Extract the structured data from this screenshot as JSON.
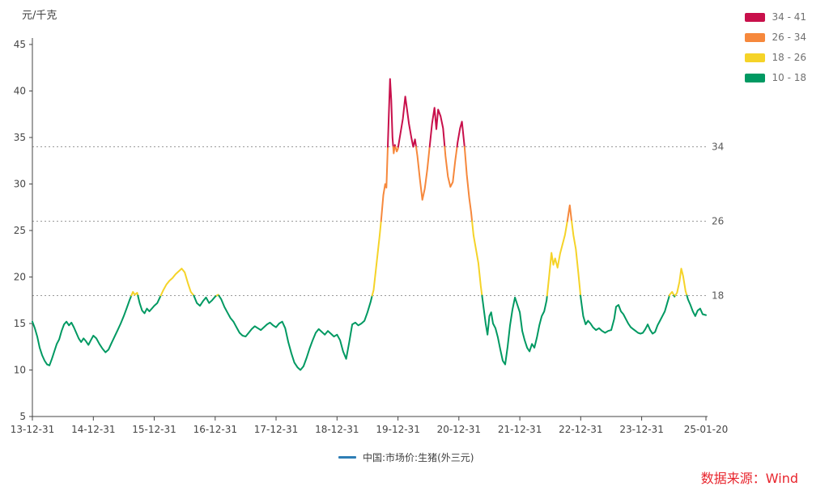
{
  "chart": {
    "unit_label": "元/千克"
  },
  "legend": {
    "series_label": "中国:市场价:生猪(外三元)",
    "series_color": "#2E7EB5"
  },
  "source": {
    "text": "数据来源：Wind",
    "color": "#E8252D"
  },
  "chart_data": {
    "type": "line",
    "title": "中国:市场价:生猪(外三元)",
    "ylabel": "元/千克",
    "grid": false,
    "legend_position": "top-right",
    "x_axis": {
      "range": [
        0,
        11.055
      ],
      "ticks": [
        {
          "t": 0,
          "label": "13-12-31"
        },
        {
          "t": 1,
          "label": "14-12-31"
        },
        {
          "t": 2,
          "label": "15-12-31"
        },
        {
          "t": 3,
          "label": "16-12-31"
        },
        {
          "t": 4,
          "label": "17-12-31"
        },
        {
          "t": 5,
          "label": "18-12-31"
        },
        {
          "t": 6,
          "label": "19-12-31"
        },
        {
          "t": 7,
          "label": "20-12-31"
        },
        {
          "t": 8,
          "label": "21-12-31"
        },
        {
          "t": 9,
          "label": "22-12-31"
        },
        {
          "t": 10,
          "label": "23-12-31"
        },
        {
          "t": 11.055,
          "label": "25-01-20"
        }
      ]
    },
    "y_axis": {
      "range": [
        5,
        45
      ],
      "ticks": [
        5,
        10,
        15,
        20,
        25,
        30,
        35,
        40,
        45
      ]
    },
    "reference_lines": [
      {
        "value": 34,
        "label": "34"
      },
      {
        "value": 26,
        "label": "26"
      },
      {
        "value": 18,
        "label": "18"
      }
    ],
    "bands": [
      {
        "label": "34 - 41",
        "min": 34,
        "max": 41,
        "color": "#C8104B"
      },
      {
        "label": "26 - 34",
        "min": 26,
        "max": 34,
        "color": "#F6883C"
      },
      {
        "label": "18 - 26",
        "min": 18,
        "max": 26,
        "color": "#F5D328"
      },
      {
        "label": "10 - 18",
        "min": 10,
        "max": 18,
        "color": "#009962"
      }
    ],
    "series": [
      {
        "name": "中国:市场价:生猪(外三元)",
        "points": [
          [
            0,
            15.2
          ],
          [
            0.04,
            14.5
          ],
          [
            0.08,
            13.6
          ],
          [
            0.12,
            12.4
          ],
          [
            0.16,
            11.6
          ],
          [
            0.2,
            11.0
          ],
          [
            0.24,
            10.6
          ],
          [
            0.28,
            10.5
          ],
          [
            0.32,
            11.2
          ],
          [
            0.36,
            12.0
          ],
          [
            0.4,
            12.8
          ],
          [
            0.44,
            13.3
          ],
          [
            0.48,
            14.2
          ],
          [
            0.52,
            14.9
          ],
          [
            0.56,
            15.2
          ],
          [
            0.6,
            14.8
          ],
          [
            0.64,
            15.1
          ],
          [
            0.68,
            14.6
          ],
          [
            0.72,
            14.0
          ],
          [
            0.76,
            13.4
          ],
          [
            0.8,
            13.0
          ],
          [
            0.84,
            13.4
          ],
          [
            0.88,
            13.1
          ],
          [
            0.92,
            12.7
          ],
          [
            0.96,
            13.2
          ],
          [
            1.0,
            13.7
          ],
          [
            1.05,
            13.4
          ],
          [
            1.1,
            12.8
          ],
          [
            1.15,
            12.3
          ],
          [
            1.2,
            11.9
          ],
          [
            1.25,
            12.2
          ],
          [
            1.3,
            12.9
          ],
          [
            1.35,
            13.6
          ],
          [
            1.4,
            14.3
          ],
          [
            1.45,
            15.0
          ],
          [
            1.5,
            15.8
          ],
          [
            1.55,
            16.7
          ],
          [
            1.6,
            17.6
          ],
          [
            1.65,
            18.4
          ],
          [
            1.68,
            18.1
          ],
          [
            1.72,
            18.3
          ],
          [
            1.76,
            17.2
          ],
          [
            1.8,
            16.4
          ],
          [
            1.84,
            16.1
          ],
          [
            1.88,
            16.6
          ],
          [
            1.92,
            16.3
          ],
          [
            1.96,
            16.6
          ],
          [
            2.0,
            16.9
          ],
          [
            2.05,
            17.2
          ],
          [
            2.1,
            17.9
          ],
          [
            2.15,
            18.6
          ],
          [
            2.2,
            19.2
          ],
          [
            2.25,
            19.6
          ],
          [
            2.3,
            19.9
          ],
          [
            2.35,
            20.3
          ],
          [
            2.4,
            20.6
          ],
          [
            2.45,
            20.9
          ],
          [
            2.5,
            20.5
          ],
          [
            2.55,
            19.4
          ],
          [
            2.6,
            18.4
          ],
          [
            2.65,
            18.0
          ],
          [
            2.7,
            17.2
          ],
          [
            2.75,
            16.9
          ],
          [
            2.8,
            17.4
          ],
          [
            2.85,
            17.8
          ],
          [
            2.9,
            17.2
          ],
          [
            2.95,
            17.5
          ],
          [
            3.0,
            17.9
          ],
          [
            3.05,
            18.1
          ],
          [
            3.1,
            17.6
          ],
          [
            3.15,
            16.8
          ],
          [
            3.2,
            16.2
          ],
          [
            3.25,
            15.6
          ],
          [
            3.3,
            15.2
          ],
          [
            3.35,
            14.6
          ],
          [
            3.4,
            14.0
          ],
          [
            3.45,
            13.7
          ],
          [
            3.5,
            13.6
          ],
          [
            3.55,
            14.0
          ],
          [
            3.6,
            14.4
          ],
          [
            3.65,
            14.7
          ],
          [
            3.7,
            14.5
          ],
          [
            3.75,
            14.3
          ],
          [
            3.8,
            14.6
          ],
          [
            3.85,
            14.9
          ],
          [
            3.9,
            15.1
          ],
          [
            3.95,
            14.8
          ],
          [
            4.0,
            14.6
          ],
          [
            4.05,
            15.0
          ],
          [
            4.1,
            15.2
          ],
          [
            4.15,
            14.5
          ],
          [
            4.2,
            13.0
          ],
          [
            4.25,
            11.8
          ],
          [
            4.3,
            10.8
          ],
          [
            4.35,
            10.3
          ],
          [
            4.4,
            10.0
          ],
          [
            4.45,
            10.4
          ],
          [
            4.5,
            11.3
          ],
          [
            4.55,
            12.3
          ],
          [
            4.6,
            13.2
          ],
          [
            4.65,
            14.0
          ],
          [
            4.7,
            14.4
          ],
          [
            4.75,
            14.1
          ],
          [
            4.8,
            13.8
          ],
          [
            4.85,
            14.2
          ],
          [
            4.9,
            13.9
          ],
          [
            4.95,
            13.6
          ],
          [
            5.0,
            13.8
          ],
          [
            5.05,
            13.2
          ],
          [
            5.1,
            12.0
          ],
          [
            5.15,
            11.2
          ],
          [
            5.2,
            13.0
          ],
          [
            5.25,
            14.9
          ],
          [
            5.3,
            15.1
          ],
          [
            5.35,
            14.8
          ],
          [
            5.4,
            15.0
          ],
          [
            5.45,
            15.3
          ],
          [
            5.5,
            16.2
          ],
          [
            5.55,
            17.3
          ],
          [
            5.6,
            18.6
          ],
          [
            5.65,
            21.5
          ],
          [
            5.7,
            24.5
          ],
          [
            5.73,
            26.5
          ],
          [
            5.76,
            28.8
          ],
          [
            5.79,
            30.0
          ],
          [
            5.81,
            29.6
          ],
          [
            5.83,
            33.5
          ],
          [
            5.85,
            37.5
          ],
          [
            5.87,
            41.3
          ],
          [
            5.89,
            39.0
          ],
          [
            5.91,
            35.0
          ],
          [
            5.93,
            33.3
          ],
          [
            5.95,
            34.2
          ],
          [
            5.98,
            33.5
          ],
          [
            6.0,
            33.8
          ],
          [
            6.03,
            35.0
          ],
          [
            6.08,
            37.0
          ],
          [
            6.12,
            39.4
          ],
          [
            6.15,
            38.0
          ],
          [
            6.18,
            36.5
          ],
          [
            6.22,
            35.0
          ],
          [
            6.25,
            34.0
          ],
          [
            6.28,
            34.8
          ],
          [
            6.32,
            33.0
          ],
          [
            6.36,
            30.5
          ],
          [
            6.4,
            28.3
          ],
          [
            6.44,
            29.5
          ],
          [
            6.48,
            31.5
          ],
          [
            6.52,
            34.0
          ],
          [
            6.56,
            36.5
          ],
          [
            6.6,
            38.2
          ],
          [
            6.63,
            35.9
          ],
          [
            6.66,
            38.0
          ],
          [
            6.7,
            37.3
          ],
          [
            6.74,
            36.0
          ],
          [
            6.78,
            33.0
          ],
          [
            6.82,
            30.8
          ],
          [
            6.86,
            29.7
          ],
          [
            6.9,
            30.2
          ],
          [
            6.94,
            32.5
          ],
          [
            6.98,
            34.5
          ],
          [
            7.02,
            36.0
          ],
          [
            7.05,
            36.7
          ],
          [
            7.1,
            33.5
          ],
          [
            7.13,
            31.0
          ],
          [
            7.17,
            28.5
          ],
          [
            7.2,
            27.0
          ],
          [
            7.24,
            24.5
          ],
          [
            7.28,
            23.0
          ],
          [
            7.32,
            21.5
          ],
          [
            7.36,
            19.0
          ],
          [
            7.4,
            17.0
          ],
          [
            7.44,
            15.0
          ],
          [
            7.47,
            13.8
          ],
          [
            7.5,
            15.8
          ],
          [
            7.53,
            16.2
          ],
          [
            7.56,
            15.0
          ],
          [
            7.6,
            14.5
          ],
          [
            7.64,
            13.5
          ],
          [
            7.68,
            12.2
          ],
          [
            7.72,
            11.0
          ],
          [
            7.76,
            10.6
          ],
          [
            7.8,
            12.5
          ],
          [
            7.84,
            14.8
          ],
          [
            7.88,
            16.5
          ],
          [
            7.92,
            17.8
          ],
          [
            7.96,
            17.0
          ],
          [
            8.0,
            16.2
          ],
          [
            8.04,
            14.2
          ],
          [
            8.08,
            13.2
          ],
          [
            8.12,
            12.4
          ],
          [
            8.16,
            12.0
          ],
          [
            8.2,
            12.8
          ],
          [
            8.24,
            12.4
          ],
          [
            8.28,
            13.5
          ],
          [
            8.32,
            14.8
          ],
          [
            8.36,
            15.8
          ],
          [
            8.4,
            16.3
          ],
          [
            8.44,
            17.5
          ],
          [
            8.48,
            20.0
          ],
          [
            8.52,
            22.6
          ],
          [
            8.55,
            21.3
          ],
          [
            8.58,
            22.0
          ],
          [
            8.62,
            21.0
          ],
          [
            8.66,
            22.5
          ],
          [
            8.7,
            23.5
          ],
          [
            8.74,
            24.5
          ],
          [
            8.78,
            26.0
          ],
          [
            8.82,
            27.7
          ],
          [
            8.85,
            26.0
          ],
          [
            8.88,
            24.5
          ],
          [
            8.92,
            23.0
          ],
          [
            8.96,
            20.5
          ],
          [
            9.0,
            17.8
          ],
          [
            9.04,
            15.8
          ],
          [
            9.08,
            14.9
          ],
          [
            9.12,
            15.3
          ],
          [
            9.16,
            15.0
          ],
          [
            9.2,
            14.6
          ],
          [
            9.25,
            14.3
          ],
          [
            9.3,
            14.5
          ],
          [
            9.35,
            14.2
          ],
          [
            9.4,
            14.0
          ],
          [
            9.45,
            14.2
          ],
          [
            9.5,
            14.3
          ],
          [
            9.55,
            15.5
          ],
          [
            9.58,
            16.8
          ],
          [
            9.62,
            17.0
          ],
          [
            9.66,
            16.3
          ],
          [
            9.7,
            16.0
          ],
          [
            9.74,
            15.5
          ],
          [
            9.78,
            15.0
          ],
          [
            9.82,
            14.6
          ],
          [
            9.86,
            14.4
          ],
          [
            9.9,
            14.2
          ],
          [
            9.94,
            14.0
          ],
          [
            9.98,
            13.9
          ],
          [
            10.02,
            14.0
          ],
          [
            10.06,
            14.4
          ],
          [
            10.1,
            14.9
          ],
          [
            10.14,
            14.3
          ],
          [
            10.18,
            13.9
          ],
          [
            10.22,
            14.1
          ],
          [
            10.26,
            14.8
          ],
          [
            10.3,
            15.3
          ],
          [
            10.34,
            15.8
          ],
          [
            10.38,
            16.3
          ],
          [
            10.42,
            17.2
          ],
          [
            10.46,
            18.1
          ],
          [
            10.5,
            18.4
          ],
          [
            10.54,
            17.9
          ],
          [
            10.58,
            18.3
          ],
          [
            10.62,
            19.5
          ],
          [
            10.65,
            20.9
          ],
          [
            10.68,
            20.1
          ],
          [
            10.72,
            18.5
          ],
          [
            10.76,
            17.6
          ],
          [
            10.8,
            17.0
          ],
          [
            10.84,
            16.3
          ],
          [
            10.88,
            15.8
          ],
          [
            10.92,
            16.4
          ],
          [
            10.96,
            16.6
          ],
          [
            11.0,
            16.0
          ],
          [
            11.055,
            15.9
          ]
        ]
      }
    ]
  }
}
